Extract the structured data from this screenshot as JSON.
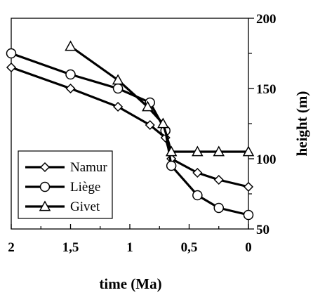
{
  "chart_data": {
    "type": "line",
    "xlabel": "time (Ma)",
    "ylabel": "height (m)",
    "xlim": [
      2,
      0
    ],
    "ylim": [
      50,
      200
    ],
    "x_axis_reversed": true,
    "y_axis_side": "right",
    "x_ticks": [
      2,
      1.5,
      1,
      0.5,
      0
    ],
    "x_tick_labels": [
      "2",
      "1,5",
      "1",
      "0,5",
      "0"
    ],
    "y_ticks": [
      50,
      100,
      150,
      200
    ],
    "y_tick_labels": [
      "50",
      "100",
      "150",
      "200"
    ],
    "grid": false,
    "legend_position": "bottom-left",
    "series": [
      {
        "name": "Namur",
        "marker": "diamond",
        "x": [
          2,
          1.5,
          1.1,
          0.83,
          0.7,
          0.65,
          0.43,
          0.25,
          0
        ],
        "y": [
          165,
          150,
          137,
          124,
          115,
          100,
          90,
          85,
          80
        ]
      },
      {
        "name": "Liège",
        "marker": "circle",
        "x": [
          2,
          1.5,
          1.1,
          0.83,
          0.7,
          0.65,
          0.43,
          0.25,
          0
        ],
        "y": [
          175,
          160,
          150,
          140,
          120,
          95,
          74,
          65,
          60
        ]
      },
      {
        "name": "Givet",
        "marker": "triangle",
        "x": [
          1.5,
          1.1,
          0.85,
          0.72,
          0.65,
          0.43,
          0.25,
          0
        ],
        "y": [
          180,
          156,
          137,
          125,
          105,
          105,
          105,
          105
        ]
      }
    ]
  }
}
